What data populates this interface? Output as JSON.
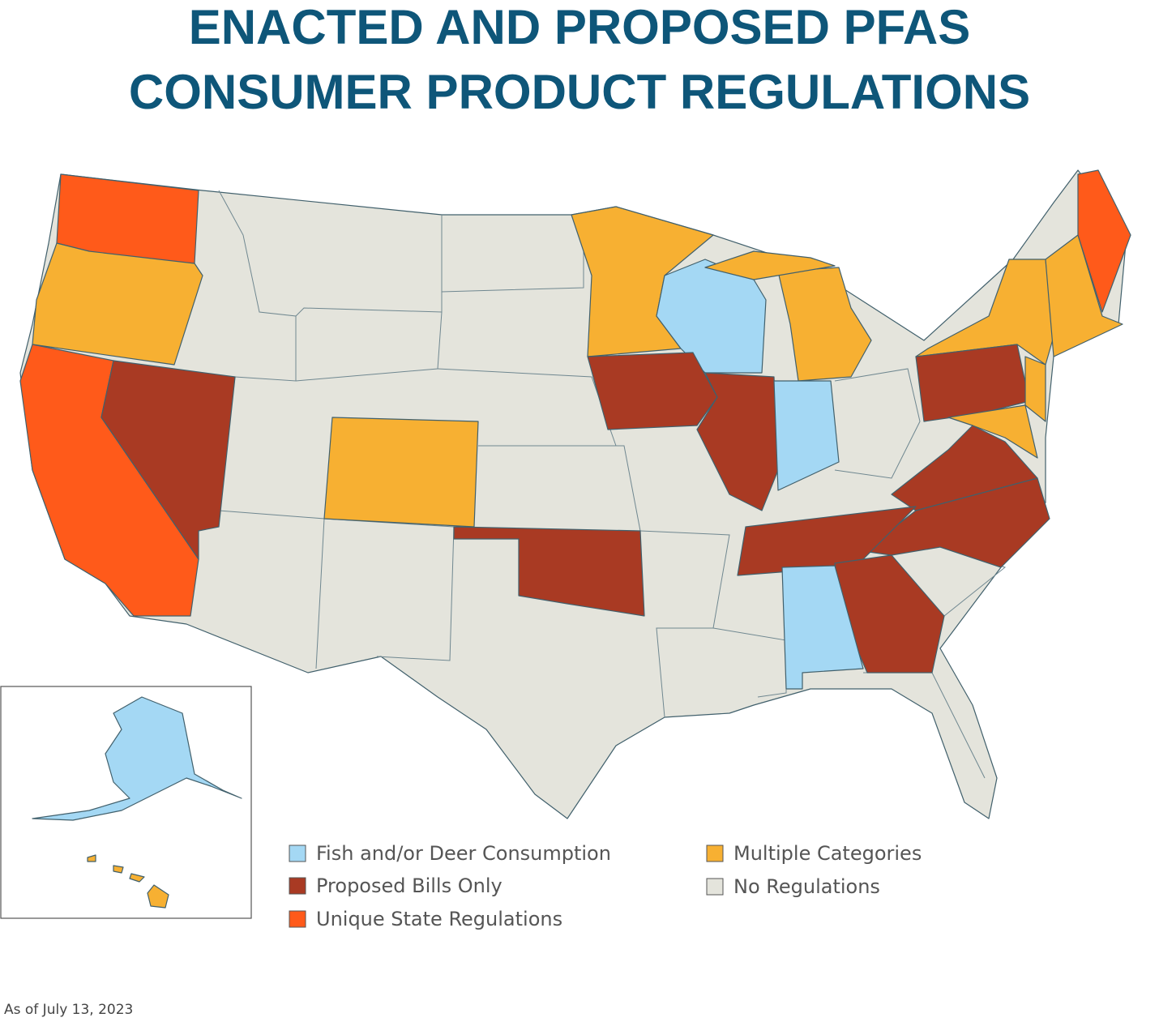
{
  "title_lines": [
    "ENACTED AND PROPOSED PFAS",
    "CONSUMER PRODUCT REGULATIONS"
  ],
  "legend": [
    {
      "label": "Fish and/or Deer Consumption",
      "color": "#a4d8f4"
    },
    {
      "label": "Proposed Bills Only",
      "color": "#a93a23"
    },
    {
      "label": "Unique State Regulations",
      "color": "#ff5a1a"
    },
    {
      "label": "Multiple Categories",
      "color": "#f7b032"
    },
    {
      "label": "No Regulations",
      "color": "#e4e4dc"
    }
  ],
  "note": "As of July 13, 2023"
}
